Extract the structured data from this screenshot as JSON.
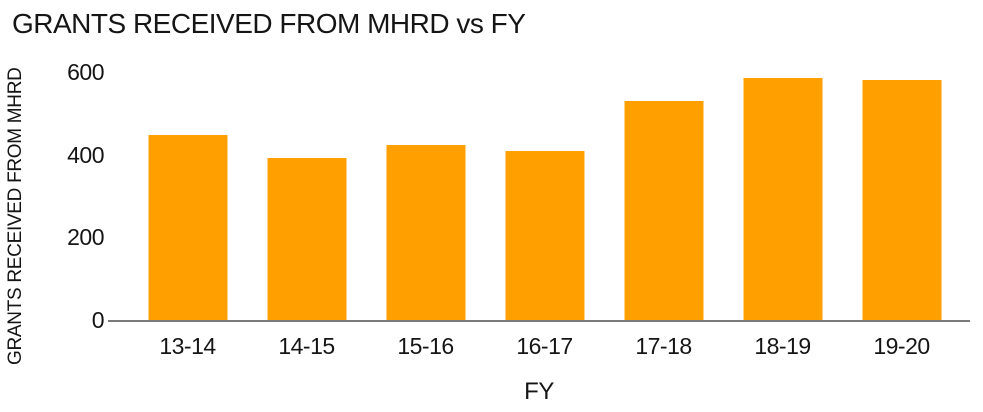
{
  "chart_data": {
    "type": "bar",
    "title": "GRANTS RECEIVED FROM MHRD vs FY",
    "xlabel": "FY",
    "ylabel": "GRANTS RECEIVED FROM MHRD",
    "categories": [
      "13-14",
      "14-15",
      "15-16",
      "16-17",
      "17-18",
      "18-19",
      "19-20"
    ],
    "values": [
      447,
      391,
      423,
      408,
      531,
      585,
      580
    ],
    "ylim": [
      0,
      600
    ],
    "yticks": [
      0,
      200,
      400,
      600
    ],
    "grid": false,
    "legend": "none",
    "colors": {
      "bar": "#FFA000",
      "axis_line": "#7a7a7a",
      "text": "#151515",
      "background": "#ffffff"
    }
  }
}
